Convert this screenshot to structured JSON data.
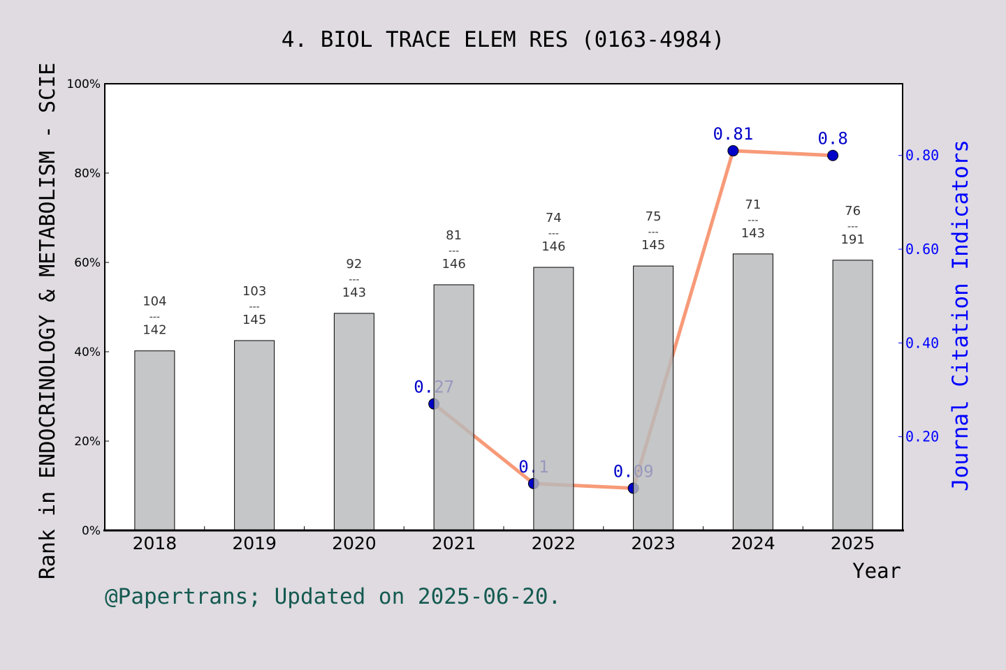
{
  "chart_data": {
    "type": "bar",
    "title": "4. BIOL TRACE ELEM RES (0163-4984)",
    "xlabel": "Year",
    "ylabel": "Rank in ENDOCRINOLOGY & METABOLISM - SCIE",
    "y2label": "Journal Citation Indicators",
    "categories": [
      "2018",
      "2019",
      "2020",
      "2021",
      "2022",
      "2023",
      "2024",
      "2025"
    ],
    "ylim": [
      0,
      100
    ],
    "y_ticks": [
      "0%",
      "20%",
      "40%",
      "60%",
      "80%",
      "100%"
    ],
    "y2lim": [
      0,
      0.953
    ],
    "y2_ticks": [
      "0.20",
      "0.40",
      "0.60",
      "0.80"
    ],
    "series": [
      {
        "name": "Rank percentile",
        "type": "bar",
        "values": [
          40.2,
          42.5,
          48.6,
          55.0,
          58.9,
          59.2,
          61.9,
          60.5
        ],
        "rank_labels": [
          [
            "104",
            "142"
          ],
          [
            "103",
            "145"
          ],
          [
            "92",
            "143"
          ],
          [
            "81",
            "146"
          ],
          [
            "74",
            "146"
          ],
          [
            "75",
            "145"
          ],
          [
            "71",
            "143"
          ],
          [
            "76",
            "191"
          ]
        ]
      },
      {
        "name": "Journal Citation Indicators",
        "type": "line",
        "axis": "right",
        "x": [
          "2021",
          "2022",
          "2023",
          "2024",
          "2025"
        ],
        "values": [
          0.27,
          0.1,
          0.09,
          0.81,
          0.8
        ],
        "labels": [
          "0.27",
          "0.1",
          "0.09",
          "0.81",
          "0.8"
        ]
      }
    ],
    "colors": {
      "bar": "#b8b9bb",
      "line": "#f79a78",
      "point": "#0000c8",
      "axis2": "#0000ff",
      "footer": "#145a50",
      "background": "#dfdbe1"
    },
    "footer": "@Papertrans; Updated on 2025-06-20.",
    "separator": "---"
  }
}
